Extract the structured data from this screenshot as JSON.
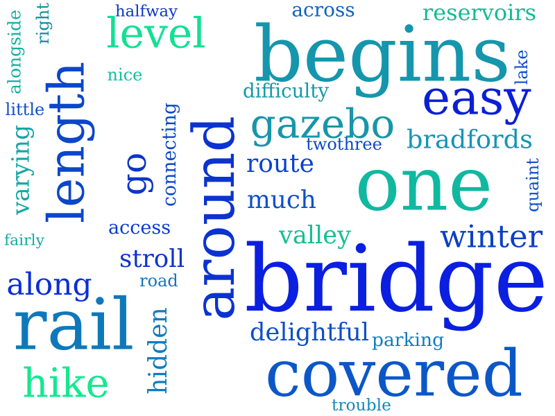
{
  "cloud": {
    "words": [
      {
        "id": "bridge",
        "text": "bridge",
        "color": "#0a1fe0",
        "rotated": false
      },
      {
        "id": "one",
        "text": "one",
        "color": "#10b8a0",
        "rotated": false
      },
      {
        "id": "around",
        "text": "around",
        "color": "#0b33d0",
        "rotated": true
      },
      {
        "id": "begins",
        "text": "begins",
        "color": "#1596ad",
        "rotated": false
      },
      {
        "id": "covered",
        "text": "covered",
        "color": "#0c57c8",
        "rotated": false
      },
      {
        "id": "length",
        "text": "length",
        "color": "#0c46c9",
        "rotated": true
      },
      {
        "id": "rail",
        "text": "rail",
        "color": "#0f78ba",
        "rotated": false
      },
      {
        "id": "easy",
        "text": "easy",
        "color": "#0a1fd6",
        "rotated": false
      },
      {
        "id": "gazebo",
        "text": "gazebo",
        "color": "#1895a9",
        "rotated": false
      },
      {
        "id": "level",
        "text": "level",
        "color": "#12e094",
        "rotated": false
      },
      {
        "id": "hike",
        "text": "hike",
        "color": "#14e890",
        "rotated": false
      },
      {
        "id": "go",
        "text": "go",
        "color": "#0c35c8",
        "rotated": true
      },
      {
        "id": "winter",
        "text": "winter",
        "color": "#0c40c8",
        "rotated": false
      },
      {
        "id": "along",
        "text": "along",
        "color": "#0a2ed8",
        "rotated": false
      },
      {
        "id": "bradfords",
        "text": "bradfords",
        "color": "#1295b5",
        "rotated": false
      },
      {
        "id": "reservoirs",
        "text": "reservoirs",
        "color": "#18b896",
        "rotated": false
      },
      {
        "id": "across",
        "text": "across",
        "color": "#0e62c4",
        "rotated": false
      },
      {
        "id": "delightful",
        "text": "delightful",
        "color": "#0e4ec8",
        "rotated": false
      },
      {
        "id": "much",
        "text": "much",
        "color": "#0e50c8",
        "rotated": false
      },
      {
        "id": "route",
        "text": "route",
        "color": "#0b43d0",
        "rotated": false
      },
      {
        "id": "valley",
        "text": "valley",
        "color": "#14c094",
        "rotated": false
      },
      {
        "id": "stroll",
        "text": "stroll",
        "color": "#0c35c8",
        "rotated": false
      },
      {
        "id": "difficulty",
        "text": "difficulty",
        "color": "#129aa6",
        "rotated": false
      },
      {
        "id": "twothree",
        "text": "twothree",
        "color": "#0c48c8",
        "rotated": false
      },
      {
        "id": "hidden",
        "text": "hidden",
        "color": "#0f7dbd",
        "rotated": true
      },
      {
        "id": "varying",
        "text": "varying",
        "color": "#14a8a5",
        "rotated": true
      },
      {
        "id": "connecting",
        "text": "connecting",
        "color": "#0c48c8",
        "rotated": true
      },
      {
        "id": "access",
        "text": "access",
        "color": "#0c3ad0",
        "rotated": false
      },
      {
        "id": "parking",
        "text": "parking",
        "color": "#0f7dbd",
        "rotated": false
      },
      {
        "id": "road",
        "text": "road",
        "color": "#0f78ba",
        "rotated": false
      },
      {
        "id": "trouble",
        "text": "trouble",
        "color": "#118ab8",
        "rotated": false
      },
      {
        "id": "nice",
        "text": "nice",
        "color": "#14bfa0",
        "rotated": false
      },
      {
        "id": "little",
        "text": "little",
        "color": "#0e50c8",
        "rotated": false
      },
      {
        "id": "fairly",
        "text": "fairly",
        "color": "#12a8a0",
        "rotated": false
      },
      {
        "id": "alongside",
        "text": "alongside",
        "color": "#14b0a2",
        "rotated": true
      },
      {
        "id": "right",
        "text": "right",
        "color": "#10909c",
        "rotated": true
      },
      {
        "id": "halfway",
        "text": "halfway",
        "color": "#0c35c8",
        "rotated": false
      },
      {
        "id": "lake",
        "text": "lake",
        "color": "#0e4ec8",
        "rotated": true
      },
      {
        "id": "quaint",
        "text": "quaint",
        "color": "#0e50c8",
        "rotated": true
      }
    ]
  }
}
